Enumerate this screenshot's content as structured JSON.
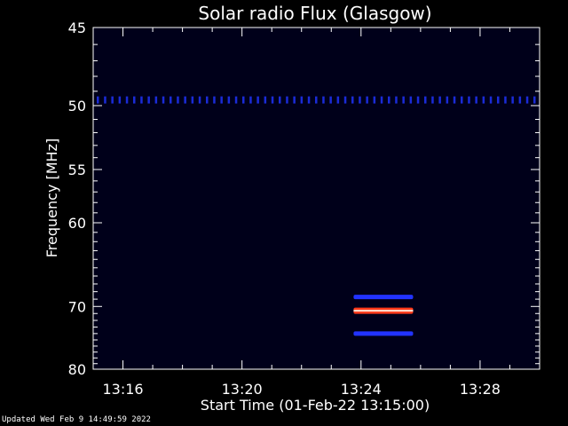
{
  "chart_data": {
    "type": "heatmap",
    "title": "Solar radio Flux (Glasgow)",
    "xlabel": "Start Time (01-Feb-22 13:15:00)",
    "ylabel": "Frequency [MHz]",
    "x_ticks": [
      "13:16",
      "13:20",
      "13:24",
      "13:28"
    ],
    "y_ticks": [
      "45",
      "50",
      "55",
      "60",
      "70",
      "80"
    ],
    "y_scale": "reciprocal",
    "ylim": [
      45,
      80
    ],
    "xlim_minutes_after_start": [
      0,
      15
    ],
    "background_color": "#00001a",
    "features": [
      {
        "frequency_mhz": 49.6,
        "color": "#1a2bd8",
        "style": "dotted",
        "time_range": [
          "13:15",
          "13:30"
        ]
      },
      {
        "frequency_mhz": 68.7,
        "color": "#2233ff",
        "style": "band",
        "time_range": [
          "13:23:45",
          "13:25:45"
        ]
      },
      {
        "frequency_mhz": 70.6,
        "color": "#ff3a1a",
        "style": "band",
        "time_range": [
          "13:23:45",
          "13:25:45"
        ]
      },
      {
        "frequency_mhz": 74.0,
        "color": "#2233ff",
        "style": "band",
        "time_range": [
          "13:23:45",
          "13:25:45"
        ]
      }
    ]
  },
  "footer": "Updated Wed Feb  9 14:49:59 2022"
}
